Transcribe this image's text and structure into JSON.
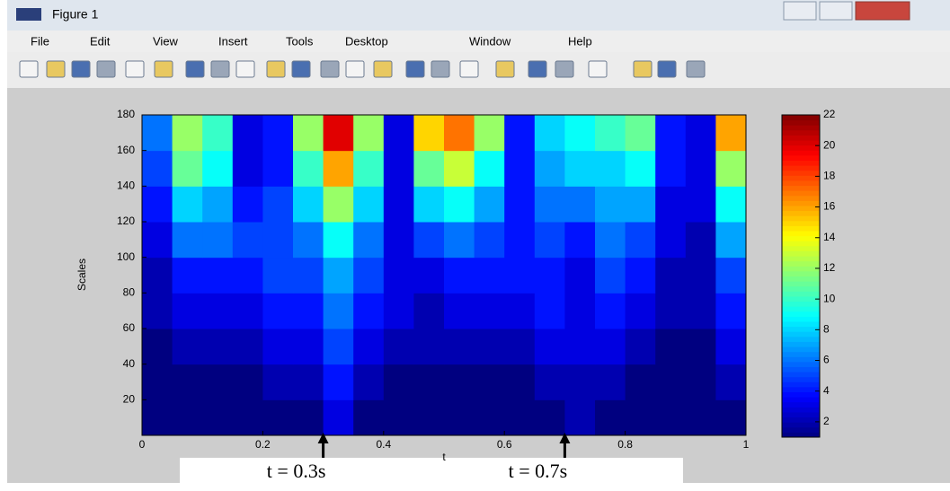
{
  "window": {
    "title": "Figure 1",
    "menu": [
      "File",
      "Edit",
      "View",
      "Insert",
      "Tools",
      "Desktop",
      "Window",
      "Help"
    ]
  },
  "chart_data": {
    "type": "heatmap",
    "xlabel": "t",
    "ylabel": "Scales",
    "x": [
      0.025,
      0.075,
      0.125,
      0.175,
      0.225,
      0.275,
      0.325,
      0.375,
      0.425,
      0.475,
      0.525,
      0.575,
      0.625,
      0.675,
      0.725,
      0.775,
      0.825,
      0.875,
      0.925,
      0.975
    ],
    "y": [
      10,
      30,
      50,
      70,
      90,
      110,
      130,
      150,
      170
    ],
    "values": [
      [
        1,
        1,
        1,
        1,
        1,
        1,
        3,
        1,
        1,
        1,
        1,
        1,
        1,
        1,
        2,
        1,
        1,
        1,
        1,
        1
      ],
      [
        1,
        1,
        1,
        1,
        2,
        2,
        4,
        2,
        1,
        1,
        1,
        1,
        1,
        2,
        2,
        2,
        1,
        1,
        1,
        2
      ],
      [
        1,
        2,
        2,
        2,
        3,
        3,
        5,
        3,
        2,
        2,
        2,
        2,
        2,
        3,
        3,
        3,
        2,
        1,
        1,
        3
      ],
      [
        2,
        3,
        3,
        3,
        4,
        4,
        6,
        4,
        3,
        2,
        3,
        3,
        3,
        4,
        3,
        4,
        3,
        2,
        2,
        4
      ],
      [
        2,
        4,
        4,
        4,
        5,
        5,
        7,
        5,
        3,
        3,
        4,
        4,
        4,
        4,
        3,
        5,
        4,
        2,
        2,
        5
      ],
      [
        3,
        6,
        6,
        5,
        5,
        6,
        9,
        6,
        3,
        5,
        6,
        5,
        4,
        5,
        4,
        6,
        5,
        3,
        2,
        7
      ],
      [
        4,
        8,
        7,
        4,
        5,
        8,
        12,
        8,
        3,
        8,
        9,
        7,
        4,
        6,
        6,
        7,
        7,
        3,
        3,
        9
      ],
      [
        5,
        11,
        9,
        3,
        4,
        10,
        16,
        10,
        3,
        11,
        13,
        9,
        4,
        7,
        8,
        8,
        9,
        4,
        3,
        12
      ],
      [
        6,
        12,
        10,
        3,
        4,
        12,
        20,
        12,
        3,
        15,
        17,
        12,
        4,
        8,
        9,
        10,
        11,
        4,
        3,
        16
      ]
    ],
    "xlim": [
      0,
      1
    ],
    "xticks": [
      0,
      0.2,
      0.4,
      0.6,
      0.8,
      1
    ],
    "ylim": [
      0,
      180
    ],
    "yticks": [
      20,
      40,
      60,
      80,
      100,
      120,
      140,
      160,
      180
    ],
    "colormap": "jet",
    "clim": [
      1,
      22
    ],
    "cticks": [
      2,
      4,
      6,
      8,
      10,
      12,
      14,
      16,
      18,
      20,
      22
    ],
    "annotations": [
      {
        "text": "t = 0.3s",
        "x": 0.3
      },
      {
        "text": "t = 0.7s",
        "x": 0.7
      }
    ]
  }
}
